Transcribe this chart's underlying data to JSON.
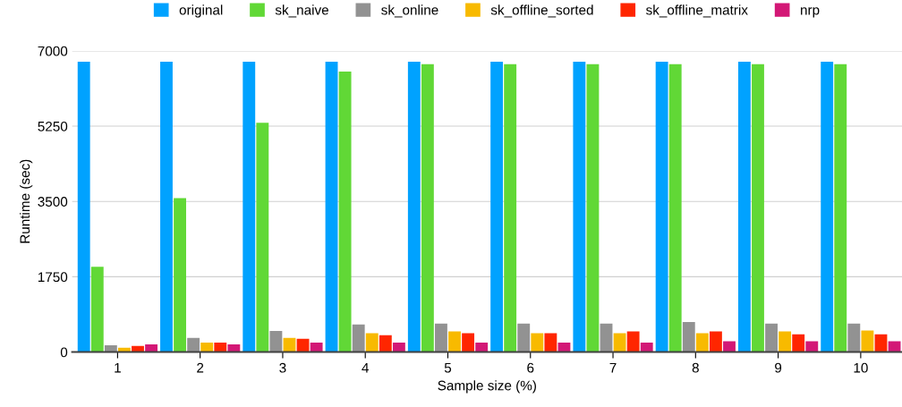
{
  "chart_data": {
    "type": "bar",
    "xlabel": "Sample size (%)",
    "ylabel": "Runtime (sec)",
    "categories": [
      "1",
      "2",
      "3",
      "4",
      "5",
      "6",
      "7",
      "8",
      "9",
      "10"
    ],
    "series": [
      {
        "name": "original",
        "color": "#00a2ff",
        "values": [
          6750,
          6750,
          6750,
          6750,
          6750,
          6750,
          6750,
          6750,
          6750,
          6750
        ]
      },
      {
        "name": "sk_naive",
        "color": "#61d836",
        "values": [
          1980,
          3580,
          5330,
          6520,
          6690,
          6690,
          6690,
          6690,
          6690,
          6690
        ]
      },
      {
        "name": "sk_online",
        "color": "#929292",
        "values": [
          160,
          330,
          490,
          640,
          660,
          660,
          660,
          700,
          660,
          660
        ]
      },
      {
        "name": "sk_offline_sorted",
        "color": "#f8ba00",
        "values": [
          100,
          220,
          330,
          440,
          480,
          440,
          440,
          440,
          480,
          500
        ]
      },
      {
        "name": "sk_offline_matrix",
        "color": "#ff2600",
        "values": [
          140,
          220,
          310,
          390,
          440,
          440,
          480,
          480,
          410,
          410
        ]
      },
      {
        "name": "nrp",
        "color": "#d31876",
        "values": [
          180,
          180,
          220,
          220,
          220,
          220,
          220,
          250,
          250,
          250
        ]
      }
    ],
    "ylim": [
      0,
      7000
    ],
    "yticks": [
      0,
      1750,
      3500,
      5250,
      7000
    ],
    "grid": "y",
    "legend": "top"
  }
}
